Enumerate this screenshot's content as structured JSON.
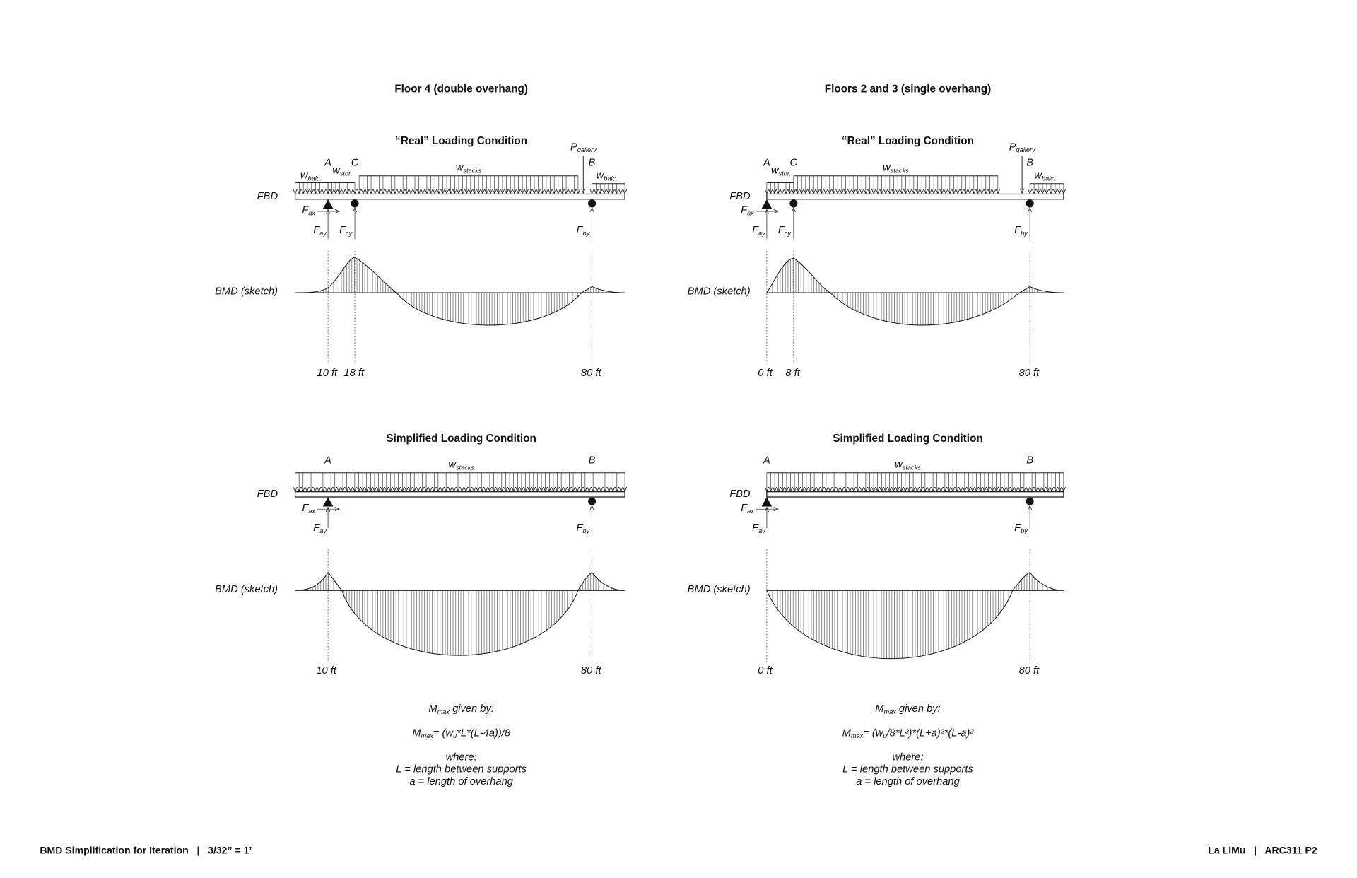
{
  "panels": [
    {
      "title": "Floor 4 (double overhang)",
      "real": {
        "title": "“Real” Loading Condition",
        "fbd": "FBD",
        "bmd": "BMD (sketch)",
        "A": "A",
        "B": "B",
        "C": "C",
        "P": {
          "text": "P",
          "sub": "gallery"
        },
        "w_balc_left": {
          "text": "w",
          "sub": "balc."
        },
        "w_stor": {
          "text": "w",
          "sub": "stor."
        },
        "w_stacks": {
          "text": "w",
          "sub": "stacks"
        },
        "w_balc_right": {
          "text": "w",
          "sub": "balc."
        },
        "F_ax": {
          "text": "F",
          "sub": "ax"
        },
        "F_ay": {
          "text": "F",
          "sub": "ay"
        },
        "F_cy": {
          "text": "F",
          "sub": "cy"
        },
        "F_by": {
          "text": "F",
          "sub": "by"
        },
        "dim_A": "10 ft",
        "dim_C": "18 ft",
        "dim_B": "80 ft"
      },
      "simplified": {
        "title": "Simplified Loading Condition",
        "fbd": "FBD",
        "bmd": "BMD (sketch)",
        "A": "A",
        "B": "B",
        "w_stacks": {
          "text": "w",
          "sub": "stacks"
        },
        "F_ax": {
          "text": "F",
          "sub": "ax"
        },
        "F_ay": {
          "text": "F",
          "sub": "ay"
        },
        "F_by": {
          "text": "F",
          "sub": "by"
        },
        "dim_A": "10 ft",
        "dim_B": "80 ft"
      },
      "formula": {
        "intro": [
          {
            "text": "M",
            "sub": false
          },
          {
            "text": "max",
            "sub": true
          },
          {
            "text": " given by:",
            "sub": false
          }
        ],
        "equation": [
          {
            "text": "M",
            "sub": false
          },
          {
            "text": "max",
            "sub": true
          },
          {
            "text": "= (w",
            "sub": false
          },
          {
            "text": "u",
            "sub": true
          },
          {
            "text": "*L*(L-4a))/8",
            "sub": false
          }
        ],
        "where": "where:",
        "L_def": "L = length between supports",
        "a_def": "a = length of overhang"
      }
    },
    {
      "title": "Floors 2 and 3 (single overhang)",
      "real": {
        "title": "“Real” Loading Condition",
        "fbd": "FBD",
        "bmd": "BMD (sketch)",
        "A": "A",
        "B": "B",
        "C": "C",
        "P": {
          "text": "P",
          "sub": "gallery"
        },
        "w_stor": {
          "text": "w",
          "sub": "stor."
        },
        "w_stacks": {
          "text": "w",
          "sub": "stacks"
        },
        "w_balc_right": {
          "text": "w",
          "sub": "balc."
        },
        "F_ax": {
          "text": "F",
          "sub": "ax"
        },
        "F_ay": {
          "text": "F",
          "sub": "ay"
        },
        "F_cy": {
          "text": "F",
          "sub": "cy"
        },
        "F_by": {
          "text": "F",
          "sub": "by"
        },
        "dim_A": "0 ft",
        "dim_C": "8 ft",
        "dim_B": "80 ft"
      },
      "simplified": {
        "title": "Simplified Loading Condition",
        "fbd": "FBD",
        "bmd": "BMD (sketch)",
        "A": "A",
        "B": "B",
        "w_stacks": {
          "text": "w",
          "sub": "stacks"
        },
        "F_ax": {
          "text": "F",
          "sub": "ax"
        },
        "F_ay": {
          "text": "F",
          "sub": "ay"
        },
        "F_by": {
          "text": "F",
          "sub": "by"
        },
        "dim_A": "0 ft",
        "dim_B": "80 ft"
      },
      "formula": {
        "intro": [
          {
            "text": "M",
            "sub": false
          },
          {
            "text": "max",
            "sub": true
          },
          {
            "text": " given by:",
            "sub": false
          }
        ],
        "equation": [
          {
            "text": "M",
            "sub": false
          },
          {
            "text": "max",
            "sub": true
          },
          {
            "text": "= (w",
            "sub": false
          },
          {
            "text": "u",
            "sub": true
          },
          {
            "text": "/8*L²)*(L+a)²*(L-a)²",
            "sub": false
          }
        ],
        "where": "where:",
        "L_def": "L = length between supports",
        "a_def": "a = length of overhang"
      }
    }
  ],
  "footer": {
    "left": "BMD Simplification for Iteration   |   3/32” = 1’",
    "right": "La LiMu   |   ARC311 P2"
  }
}
